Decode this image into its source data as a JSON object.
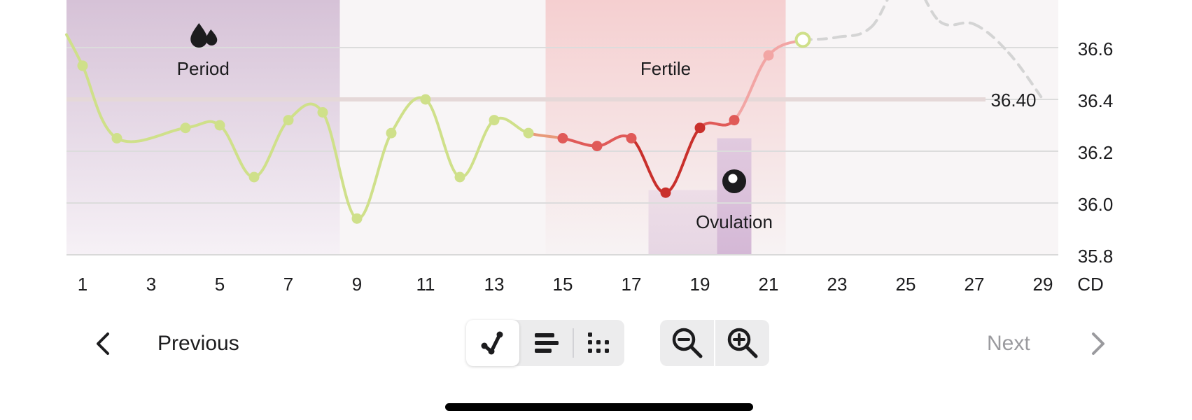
{
  "chart_data": {
    "type": "line",
    "x_unit": "CD",
    "x_ticks": [
      1,
      3,
      5,
      7,
      9,
      11,
      13,
      15,
      17,
      19,
      21,
      23,
      25,
      27,
      29
    ],
    "x_range": [
      0.5,
      29.5
    ],
    "y_ticks": [
      "35.8",
      "36.0",
      "36.2",
      "36.4",
      "36.6"
    ],
    "y_range": [
      35.8,
      36.8
    ],
    "coverline": {
      "value": 36.4,
      "label": "36.40"
    },
    "phases": [
      {
        "name": "Period",
        "label": "Period",
        "from": 0.5,
        "to": 8.5,
        "color": "#d3bed3",
        "icon": "drops-icon"
      },
      {
        "name": "Fertile",
        "label": "Fertile",
        "from": 14.5,
        "to": 21.5,
        "color": "#f5cfd0"
      },
      {
        "name": "Ovulation",
        "label": "Ovulation",
        "day": 20,
        "icon": "ovulation-icon"
      }
    ],
    "series": [
      {
        "points": [
          {
            "x": 1,
            "y": 36.53,
            "phase": "normal"
          },
          {
            "x": 2,
            "y": 36.25,
            "phase": "normal"
          },
          {
            "x": 4,
            "y": 36.29,
            "phase": "normal"
          },
          {
            "x": 5,
            "y": 36.3,
            "phase": "normal"
          },
          {
            "x": 6,
            "y": 36.1,
            "phase": "normal"
          },
          {
            "x": 7,
            "y": 36.32,
            "phase": "normal"
          },
          {
            "x": 8,
            "y": 36.35,
            "phase": "normal"
          },
          {
            "x": 9,
            "y": 35.94,
            "phase": "normal"
          },
          {
            "x": 10,
            "y": 36.27,
            "phase": "normal"
          },
          {
            "x": 11,
            "y": 36.4,
            "phase": "normal"
          },
          {
            "x": 12,
            "y": 36.1,
            "phase": "normal"
          },
          {
            "x": 13,
            "y": 36.32,
            "phase": "normal"
          },
          {
            "x": 14,
            "y": 36.27,
            "phase": "normal"
          },
          {
            "x": 15,
            "y": 36.25,
            "phase": "fertile"
          },
          {
            "x": 16,
            "y": 36.22,
            "phase": "fertile"
          },
          {
            "x": 17,
            "y": 36.25,
            "phase": "fertile"
          },
          {
            "x": 18,
            "y": 36.04,
            "phase": "peak"
          },
          {
            "x": 19,
            "y": 36.29,
            "phase": "peak"
          },
          {
            "x": 20,
            "y": 36.32,
            "phase": "fertile"
          },
          {
            "x": 21,
            "y": 36.57,
            "phase": "light"
          }
        ]
      },
      {
        "points": [
          {
            "x": 22,
            "y": 36.63
          },
          {
            "x": 23,
            "y": 36.64
          },
          {
            "x": 24,
            "y": 36.68
          },
          {
            "x": 25,
            "y": 36.88
          },
          {
            "x": 26,
            "y": 36.7
          },
          {
            "x": 27,
            "y": 36.69
          },
          {
            "x": 28,
            "y": 36.58
          },
          {
            "x": 29,
            "y": 36.4
          }
        ]
      }
    ],
    "today": {
      "x": 22,
      "y": 36.63
    },
    "colors": {
      "normal": "#cfe08a",
      "fertile": "#e05a58",
      "peak": "#c9302c",
      "light": "#f2a5a4",
      "predicted": "#d4d4d4",
      "grid": "#dcdcdc",
      "coverline": "#e5d8d8"
    }
  },
  "nav": {
    "previous_label": "Previous",
    "next_label": "Next",
    "previous_icon": "chevron-left-icon",
    "next_icon": "chevron-right-icon"
  },
  "view_modes": [
    {
      "name": "line-chart-view",
      "icon": "line-chart-icon",
      "active": true
    },
    {
      "name": "bar-chart-view",
      "icon": "bars-icon",
      "active": false
    },
    {
      "name": "dot-chart-view",
      "icon": "dots-grid-icon",
      "active": false
    }
  ],
  "zoom": [
    {
      "name": "zoom-out",
      "icon": "zoom-out-icon"
    },
    {
      "name": "zoom-in",
      "icon": "zoom-in-icon"
    }
  ]
}
